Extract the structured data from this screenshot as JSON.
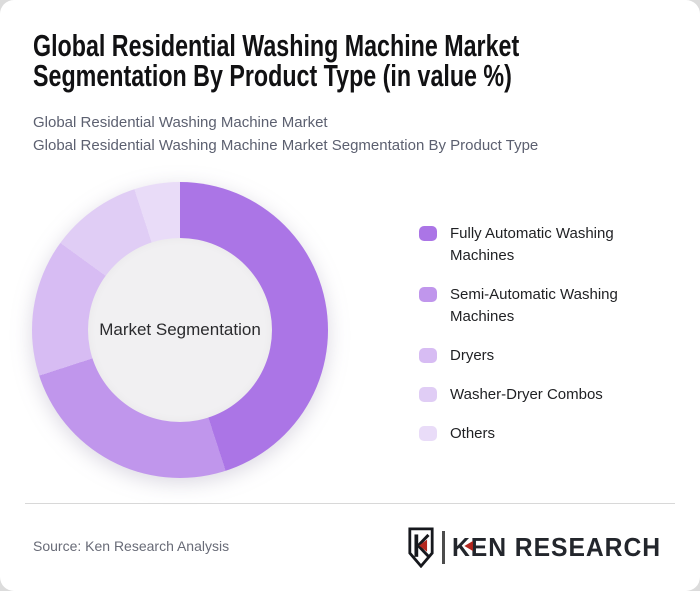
{
  "header": {
    "title_line1": "Global Residential Washing Machine Market",
    "title_line2": "Segmentation By Product Type (in value %)",
    "subtitle_line1": "Global Residential Washing Machine Market",
    "subtitle_line2": "Global Residential Washing Machine Market Segmentation By Product Type"
  },
  "chart_data": {
    "type": "pie",
    "variant": "donut",
    "title": "Global Residential Washing Machine Market Segmentation By Product Type (in value %)",
    "center_label": "Market Segmentation",
    "categories": [
      "Fully Automatic Washing Machines",
      "Semi-Automatic Washing Machines",
      "Dryers",
      "Washer-Dryer Combos",
      "Others"
    ],
    "values": [
      45,
      25,
      15,
      10,
      5
    ],
    "unit": "percent of market value",
    "colors": [
      "#ab75e6",
      "#c096ec",
      "#d7bcf3",
      "#e0cdf5",
      "#e9dcf8"
    ],
    "start_angle_deg": 0,
    "legend_position": "right",
    "hole_color": "#f1f0f2"
  },
  "footer": {
    "source": "Source: Ken Research Analysis",
    "logo": {
      "shield_letter": "K",
      "brand": "KEN RESEARCH",
      "accent_red": "#b3261e"
    }
  }
}
